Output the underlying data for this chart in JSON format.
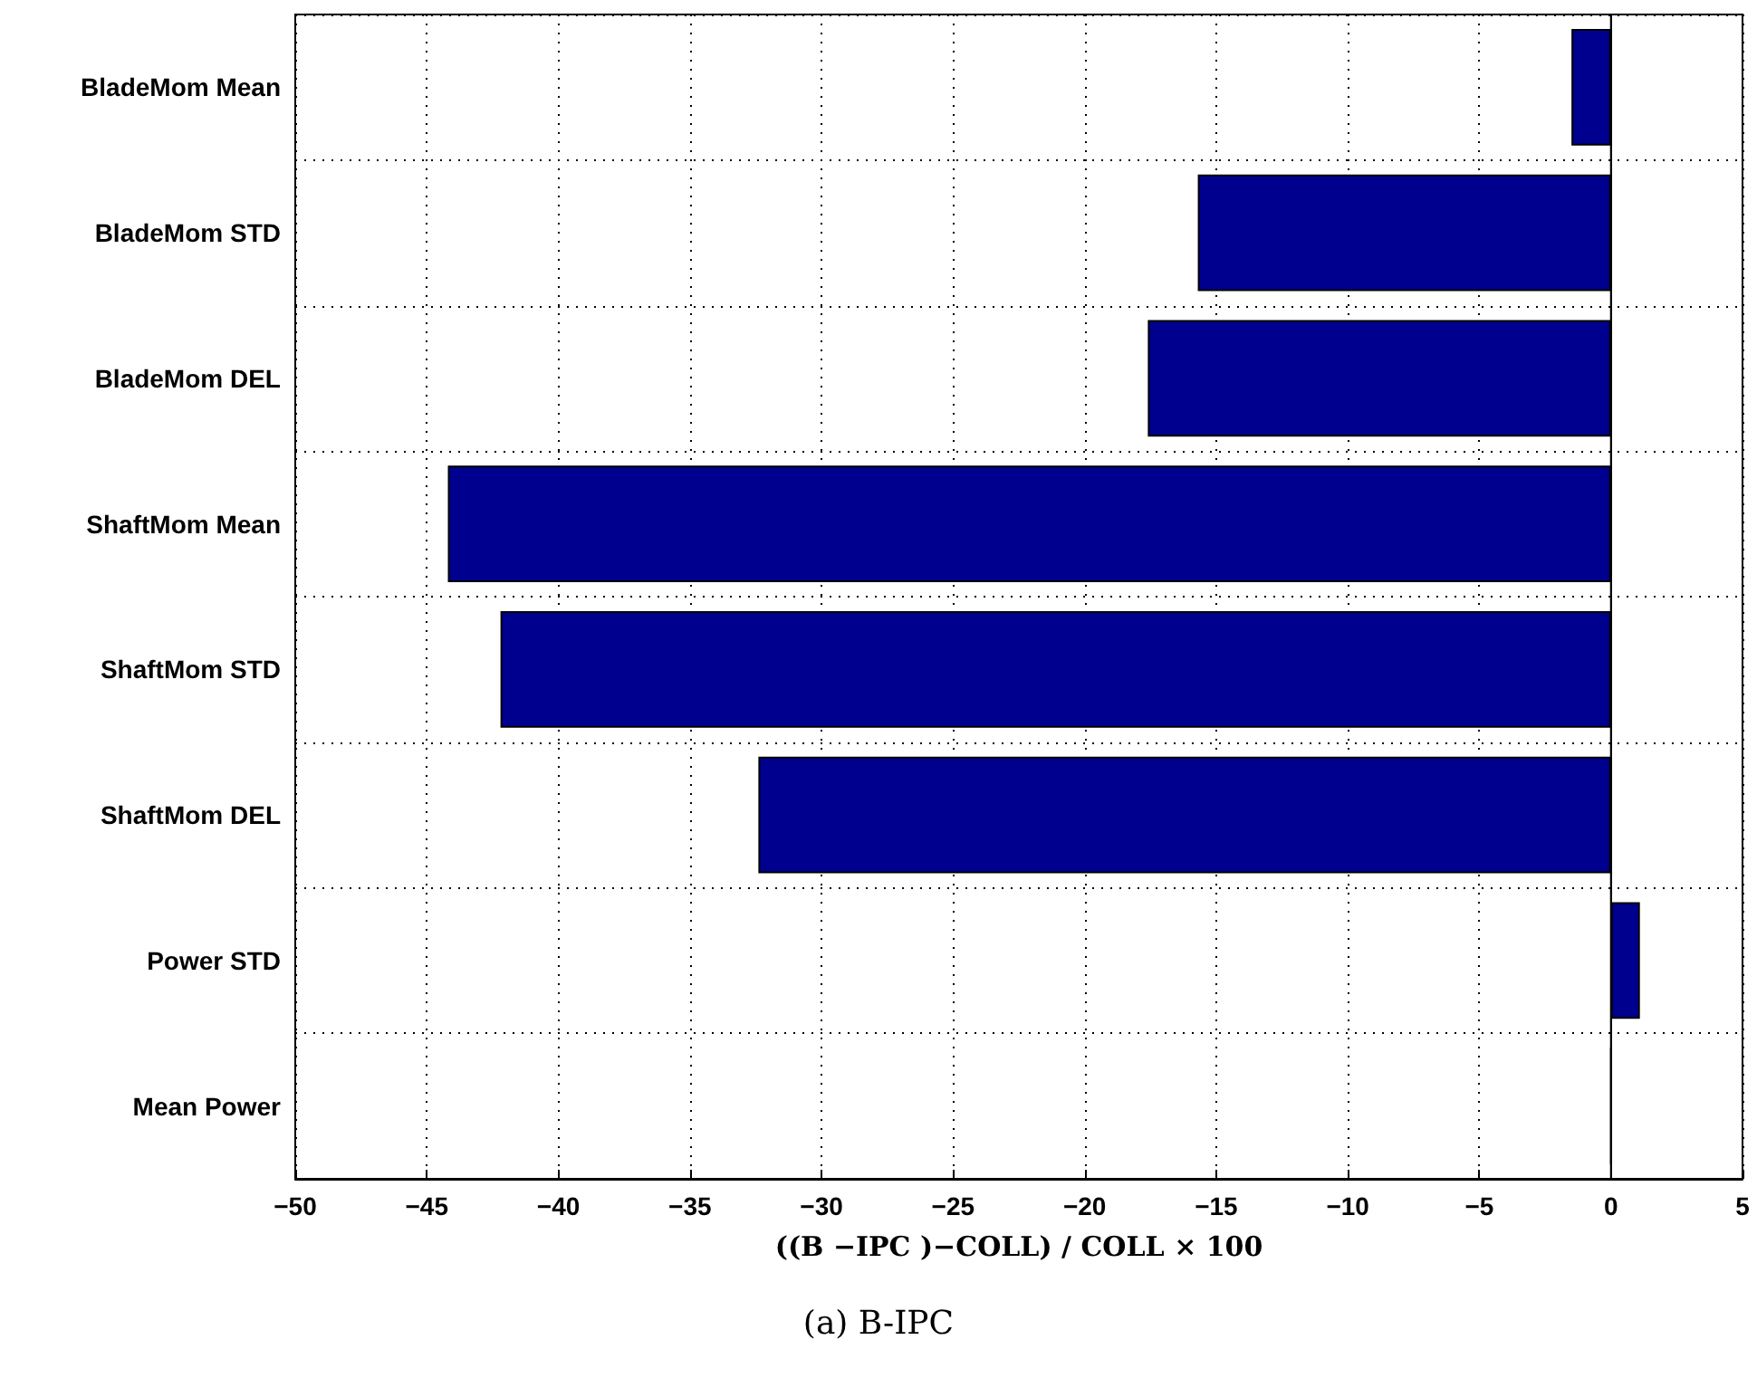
{
  "chart_data": {
    "type": "bar",
    "orientation": "horizontal",
    "categories": [
      "BladeMom Mean",
      "BladeMom STD",
      "BladeMom DEL",
      "ShaftMom Mean",
      "ShaftMom STD",
      "ShaftMom DEL",
      "Power STD",
      "Mean Power"
    ],
    "values": [
      -1.5,
      -15.7,
      -17.6,
      -44.2,
      -42.2,
      -32.4,
      1.1,
      0
    ],
    "color": "#00008f",
    "xlim": [
      -50,
      5
    ],
    "xticks": [
      -50,
      -45,
      -40,
      -35,
      -30,
      -25,
      -20,
      -15,
      -10,
      -5,
      0,
      5
    ],
    "xlabel": "((B −IPC )−COLL) / COLL × 100",
    "annotations": [
      "(a) B-IPC"
    ],
    "grid": true
  }
}
